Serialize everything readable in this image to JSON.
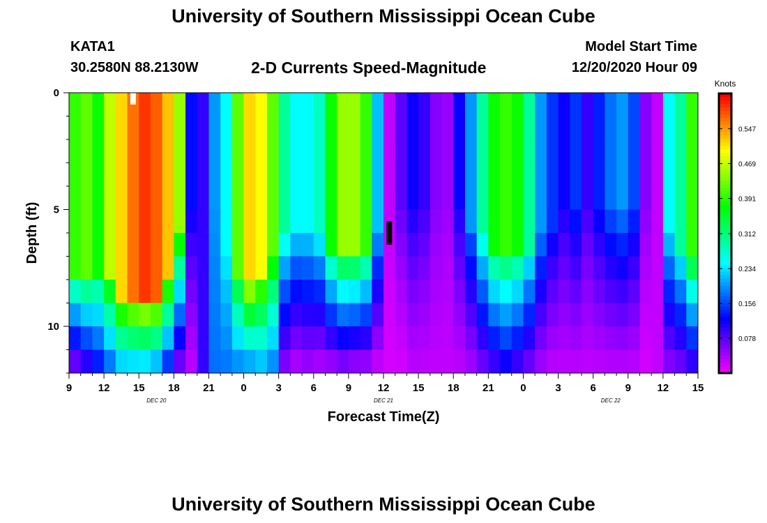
{
  "header": {
    "title": "University of Southern Mississippi Ocean Cube",
    "station_id": "KATA1",
    "station_location": "30.2580N 88.2130W",
    "plot_title": "2-D Currents Speed-Magnitude",
    "model_start_label": "Model Start Time",
    "model_start_time": "12/20/2020 Hour 09"
  },
  "footer": {
    "title": "University of Southern Mississippi Ocean Cube"
  },
  "chart_data": {
    "type": "heatmap",
    "title": "2-D Currents Speed-Magnitude",
    "xlabel": "Forecast Time(Z)",
    "ylabel": "Depth (ft)",
    "xlim": [
      0,
      54
    ],
    "ylim": [
      12,
      0
    ],
    "x_ticks": [
      {
        "t": 0,
        "label": "9"
      },
      {
        "t": 3,
        "label": "12"
      },
      {
        "t": 6,
        "label": "15"
      },
      {
        "t": 9,
        "label": "18"
      },
      {
        "t": 12,
        "label": "21"
      },
      {
        "t": 15,
        "label": "0"
      },
      {
        "t": 18,
        "label": "3"
      },
      {
        "t": 21,
        "label": "6"
      },
      {
        "t": 24,
        "label": "9"
      },
      {
        "t": 27,
        "label": "12"
      },
      {
        "t": 30,
        "label": "15"
      },
      {
        "t": 33,
        "label": "18"
      },
      {
        "t": 36,
        "label": "21"
      },
      {
        "t": 39,
        "label": "0"
      },
      {
        "t": 42,
        "label": "3"
      },
      {
        "t": 45,
        "label": "6"
      },
      {
        "t": 48,
        "label": "9"
      },
      {
        "t": 51,
        "label": "12"
      },
      {
        "t": 54,
        "label": "15"
      }
    ],
    "date_labels": [
      {
        "t": 7.5,
        "label": "DEC 20"
      },
      {
        "t": 27,
        "label": "DEC 21"
      },
      {
        "t": 46.5,
        "label": "DEC 22"
      }
    ],
    "y_ticks": [
      0,
      5,
      10
    ],
    "colorbar": {
      "label": "Knots",
      "min": 0.0,
      "max": 0.626,
      "ticks": [
        "0.547",
        "0.469",
        "0.391",
        "0.312",
        "0.234",
        "0.156",
        "0.078"
      ],
      "tick_values": [
        0.547,
        0.469,
        0.391,
        0.312,
        0.234,
        0.156,
        0.078
      ]
    },
    "depth_levels_ft": [
      0.5,
      1.5,
      2.5,
      3.5,
      4.5,
      5.5,
      6.5,
      7.5,
      8.5,
      9.5,
      10.5,
      11.5
    ],
    "hours_from_start": [
      0,
      1,
      2,
      3,
      4,
      5,
      6,
      7,
      8,
      9,
      10,
      11,
      12,
      13,
      14,
      15,
      16,
      17,
      18,
      19,
      20,
      21,
      22,
      23,
      24,
      25,
      26,
      27,
      28,
      29,
      30,
      31,
      32,
      33,
      34,
      35,
      36,
      37,
      38,
      39,
      40,
      41,
      42,
      43,
      44,
      45,
      46,
      47,
      48,
      49,
      50,
      51,
      52,
      53
    ],
    "surface_speed_knots": [
      0.4,
      0.42,
      0.38,
      0.47,
      0.52,
      0.57,
      0.6,
      0.58,
      0.53,
      0.45,
      0.13,
      0.1,
      0.2,
      0.25,
      0.42,
      0.52,
      0.5,
      0.42,
      0.3,
      0.25,
      0.25,
      0.28,
      0.38,
      0.45,
      0.45,
      0.4,
      0.22,
      0.03,
      0.08,
      0.12,
      0.1,
      0.06,
      0.05,
      0.12,
      0.2,
      0.3,
      0.38,
      0.4,
      0.38,
      0.3,
      0.2,
      0.15,
      0.12,
      0.15,
      0.1,
      0.14,
      0.18,
      0.2,
      0.16,
      0.06,
      0.03,
      0.25,
      0.3,
      0.4
    ],
    "shallow_depth_ft": [
      7.5,
      7.5,
      7.5,
      7.5,
      8.5,
      8.5,
      8.5,
      8.5,
      7.5,
      6.0,
      5.0,
      5.0,
      5.0,
      7.0,
      7.5,
      8.0,
      7.5,
      7.0,
      6.0,
      6.0,
      6.0,
      6.0,
      6.5,
      6.5,
      6.5,
      6.5,
      6.0,
      6.0,
      5.0,
      5.0,
      5.0,
      5.0,
      5.0,
      5.0,
      5.5,
      6.0,
      6.5,
      6.5,
      6.5,
      6.5,
      6.0,
      5.5,
      5.0,
      5.0,
      5.0,
      5.0,
      5.0,
      5.0,
      5.0,
      5.0,
      5.0,
      6.0,
      6.5,
      7.0
    ],
    "bottom_speed_knots": [
      0.05,
      0.08,
      0.12,
      0.16,
      0.2,
      0.2,
      0.2,
      0.18,
      0.12,
      0.05,
      0.03,
      0.1,
      0.18,
      0.18,
      0.18,
      0.18,
      0.2,
      0.18,
      0.05,
      0.03,
      0.04,
      0.03,
      0.03,
      0.04,
      0.03,
      0.03,
      0.02,
      0.02,
      0.02,
      0.03,
      0.03,
      0.03,
      0.03,
      0.03,
      0.04,
      0.06,
      0.08,
      0.1,
      0.08,
      0.06,
      0.04,
      0.03,
      0.03,
      0.03,
      0.03,
      0.03,
      0.03,
      0.03,
      0.03,
      0.02,
      0.03,
      0.05,
      0.06,
      0.08
    ],
    "missing_cells": [
      {
        "t": 5,
        "depth_range": [
          0,
          0.5
        ],
        "color": "#ffffff"
      },
      {
        "t": 27,
        "depth_range": [
          5.5,
          6.5
        ],
        "color": "#000000"
      }
    ]
  }
}
